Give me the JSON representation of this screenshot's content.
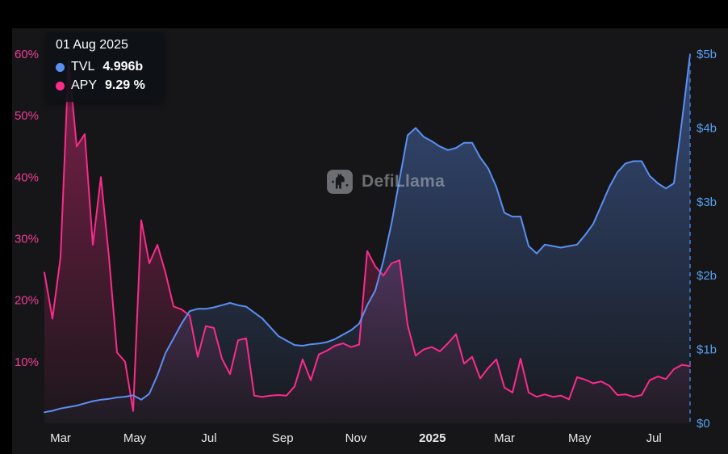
{
  "tooltip": {
    "date": "01 Aug 2025",
    "rows": [
      {
        "label": "TVL",
        "value": "4.996b",
        "color": "#5b8ff2"
      },
      {
        "label": "APY",
        "value": "9.29 %",
        "color": "#fa2c8a"
      }
    ]
  },
  "watermark": {
    "text": "DefiLlama"
  },
  "chart_data": {
    "type": "line",
    "x_ticks": [
      {
        "label": "Mar",
        "pos": 0.025
      },
      {
        "label": "May",
        "pos": 0.14
      },
      {
        "label": "Jul",
        "pos": 0.255
      },
      {
        "label": "Sep",
        "pos": 0.369
      },
      {
        "label": "Nov",
        "pos": 0.4825
      },
      {
        "label": "2025",
        "pos": 0.601,
        "bold": true
      },
      {
        "label": "Mar",
        "pos": 0.7125
      },
      {
        "label": "May",
        "pos": 0.829
      },
      {
        "label": "Jul",
        "pos": 0.944
      }
    ],
    "left_axis": {
      "name": "APY",
      "unit": "%",
      "color": "#ee3d96",
      "range": [
        0,
        60
      ],
      "ticks": [
        {
          "label": "60%",
          "value": 60
        },
        {
          "label": "50%",
          "value": 50
        },
        {
          "label": "40%",
          "value": 40
        },
        {
          "label": "30%",
          "value": 30
        },
        {
          "label": "20%",
          "value": 20
        },
        {
          "label": "10%",
          "value": 10
        }
      ]
    },
    "right_axis": {
      "name": "TVL",
      "unit": "$b",
      "color": "#57a0f0",
      "range": [
        0,
        5
      ],
      "ticks": [
        {
          "label": "$5b",
          "value": 5
        },
        {
          "label": "$4b",
          "value": 4
        },
        {
          "label": "$3b",
          "value": 3
        },
        {
          "label": "$2b",
          "value": 2
        },
        {
          "label": "$1b",
          "value": 1
        },
        {
          "label": "$0",
          "value": 0
        }
      ]
    },
    "cursor": {
      "position": 1,
      "color": "#3f7fd9"
    },
    "series": [
      {
        "name": "TVL",
        "axis": "right",
        "color": "#5b8ff2",
        "values": [
          0.15,
          0.17,
          0.2,
          0.22,
          0.24,
          0.27,
          0.3,
          0.32,
          0.33,
          0.35,
          0.36,
          0.38,
          0.32,
          0.4,
          0.65,
          0.95,
          1.15,
          1.35,
          1.52,
          1.55,
          1.55,
          1.57,
          1.6,
          1.63,
          1.6,
          1.58,
          1.5,
          1.42,
          1.3,
          1.18,
          1.12,
          1.06,
          1.05,
          1.07,
          1.08,
          1.1,
          1.14,
          1.2,
          1.26,
          1.35,
          1.6,
          1.8,
          2.2,
          2.7,
          3.3,
          3.9,
          4.0,
          3.88,
          3.82,
          3.75,
          3.7,
          3.73,
          3.8,
          3.8,
          3.6,
          3.45,
          3.2,
          2.85,
          2.8,
          2.8,
          2.4,
          2.3,
          2.42,
          2.4,
          2.38,
          2.4,
          2.42,
          2.55,
          2.7,
          2.95,
          3.2,
          3.4,
          3.52,
          3.55,
          3.55,
          3.35,
          3.25,
          3.18,
          3.25,
          4.1,
          4.996
        ]
      },
      {
        "name": "APY",
        "axis": "left",
        "color": "#fa2c8a",
        "values": [
          24.5,
          17,
          27,
          59,
          45,
          47,
          29,
          40,
          27,
          11.5,
          10,
          2,
          33,
          26,
          29,
          24.5,
          19,
          18.5,
          17.5,
          10.8,
          15.8,
          15.5,
          10.5,
          8,
          13.5,
          13.8,
          4.5,
          4.3,
          4.5,
          4.6,
          4.5,
          6,
          10.4,
          7,
          11.2,
          11.8,
          12.6,
          13,
          12.4,
          12.8,
          28,
          25.5,
          24,
          26,
          26.5,
          16,
          11,
          12,
          12.4,
          11.7,
          13,
          14.5,
          9.7,
          10.8,
          7.3,
          9,
          10.4,
          5.8,
          5,
          10.5,
          5,
          4.3,
          4.7,
          4.3,
          4.5,
          3.9,
          7.5,
          7.1,
          6.5,
          6.8,
          6.1,
          4.6,
          4.7,
          4.3,
          4.6,
          7,
          7.6,
          7.2,
          8.8,
          9.5,
          9.29
        ]
      }
    ]
  }
}
